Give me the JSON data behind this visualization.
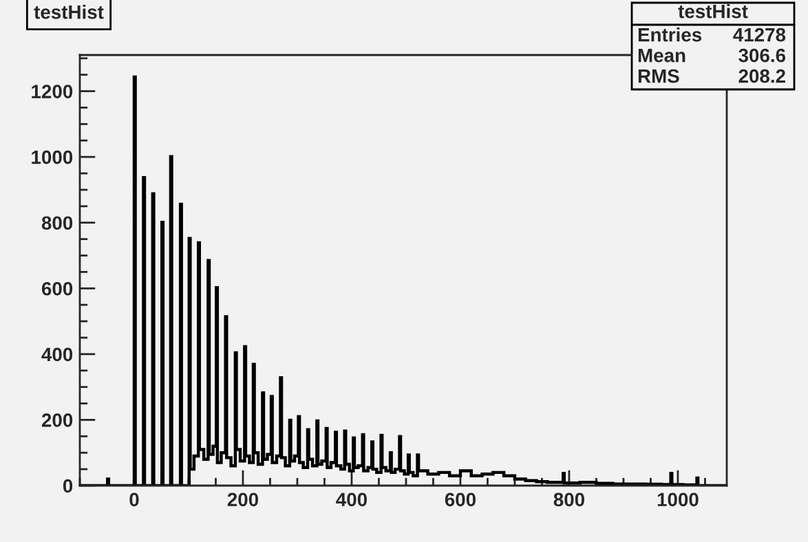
{
  "chart_data": {
    "type": "histogram",
    "title": "testHist",
    "annotations": [
      "testHist",
      "Entries",
      "41278",
      "Mean",
      "306.6",
      "RMS",
      "208.2"
    ],
    "bins": [
      -100,
      -49,
      -47,
      0,
      2,
      17,
      19,
      34,
      36,
      51,
      53,
      67,
      69,
      85,
      87,
      101,
      103,
      110,
      118,
      120,
      128,
      136,
      138,
      145,
      151,
      153,
      160,
      168,
      170,
      178,
      186,
      188,
      195,
      203,
      205,
      212,
      219,
      221,
      228,
      236,
      238,
      245,
      252,
      254,
      262,
      269,
      271,
      278,
      286,
      288,
      295,
      302,
      304,
      311,
      319,
      321,
      328,
      336,
      338,
      345,
      353,
      355,
      362,
      370,
      372,
      380,
      387,
      389,
      396,
      403,
      405,
      412,
      420,
      422,
      430,
      437,
      439,
      446,
      454,
      456,
      463,
      471,
      473,
      480,
      488,
      490,
      497,
      504,
      506,
      513,
      521,
      523,
      540,
      560,
      580,
      600,
      620,
      640,
      660,
      680,
      700,
      720,
      740,
      760,
      789,
      791,
      820,
      850,
      880,
      910,
      940,
      970,
      987,
      989,
      1010,
      1035,
      1037,
      1060,
      1090
    ],
    "values": [
      0,
      20,
      0,
      1243,
      0,
      937,
      0,
      888,
      0,
      801,
      0,
      1001,
      0,
      856,
      0,
      752,
      50,
      90,
      739,
      110,
      80,
      685,
      95,
      120,
      602,
      70,
      100,
      514,
      85,
      60,
      404,
      110,
      75,
      423,
      90,
      70,
      369,
      100,
      65,
      282,
      80,
      95,
      271,
      70,
      90,
      328,
      85,
      60,
      199,
      75,
      90,
      210,
      70,
      55,
      170,
      80,
      60,
      197,
      65,
      75,
      174,
      55,
      70,
      162,
      60,
      50,
      166,
      65,
      45,
      145,
      55,
      60,
      155,
      45,
      55,
      133,
      50,
      40,
      153,
      55,
      45,
      100,
      40,
      50,
      149,
      45,
      35,
      93,
      40,
      30,
      93,
      45,
      35,
      40,
      30,
      45,
      30,
      35,
      40,
      30,
      20,
      15,
      12,
      10,
      37,
      8,
      10,
      7,
      5,
      5,
      4,
      3,
      37,
      3,
      2,
      23,
      0,
      0
    ],
    "color": "#000000",
    "xlim": [
      -100,
      1090
    ],
    "ylim": [
      0,
      1310
    ],
    "xticks": [
      0,
      200,
      400,
      600,
      800,
      1000
    ],
    "yticks": [
      0,
      200,
      400,
      600,
      800,
      1000,
      1200
    ],
    "grid": false
  }
}
